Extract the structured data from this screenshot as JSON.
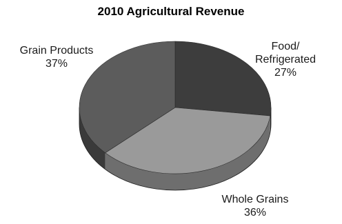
{
  "chart_data": {
    "type": "pie",
    "title": "2010 Agricultural Revenue",
    "slices": [
      {
        "label_lines": [
          "Food/",
          "Refrigerated"
        ],
        "percent_label": "27%",
        "value": 27,
        "color": "#3d3d3d",
        "side_color": "#262626"
      },
      {
        "label_lines": [
          "Whole Grains"
        ],
        "percent_label": "36%",
        "value": 36,
        "color": "#9a9a9a",
        "side_color": "#6e6e6e"
      },
      {
        "label_lines": [
          "Grain Products"
        ],
        "percent_label": "37%",
        "value": 37,
        "color": "#5c5c5c",
        "side_color": "#3a3a3a"
      }
    ],
    "style": "3d",
    "legend": "none"
  }
}
